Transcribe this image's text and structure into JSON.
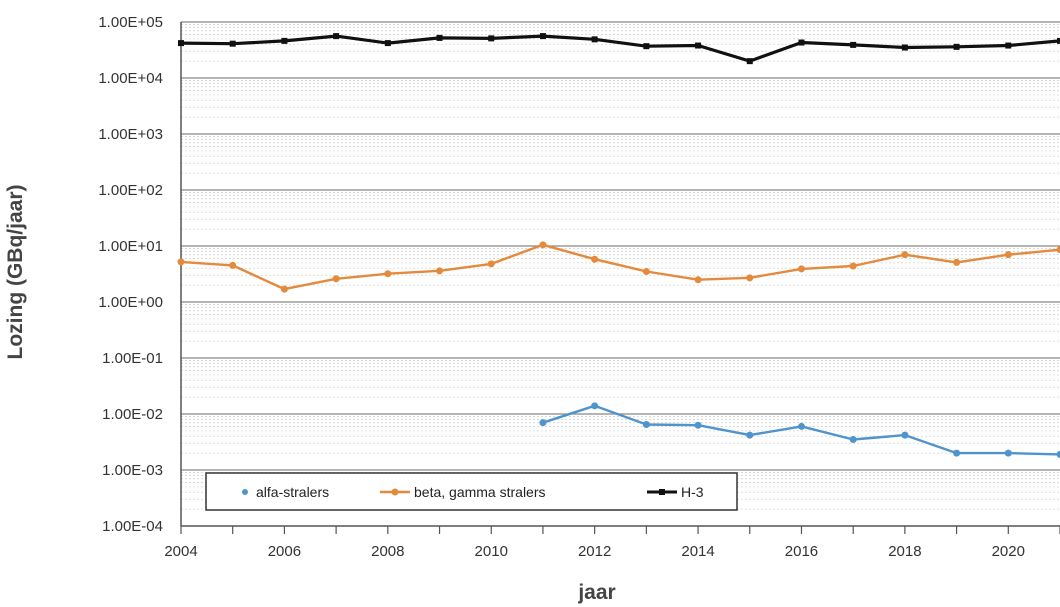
{
  "chart_data": {
    "type": "line",
    "title": "",
    "xlabel": "jaar",
    "ylabel": "Lozing (GBq/jaar)",
    "y_scale": "log",
    "ylim": [
      0.0001,
      100000
    ],
    "xlim": [
      2004,
      2021
    ],
    "x_ticks": [
      "2004",
      "2006",
      "2008",
      "2010",
      "2012",
      "2014",
      "2016",
      "2018",
      "2020"
    ],
    "y_ticks": [
      "1.00E-04",
      "1.00E-03",
      "1.00E-02",
      "1.00E-01",
      "1.00E+00",
      "1.00E+01",
      "1.00E+02",
      "1.00E+03",
      "1.00E+04",
      "1.00E+05"
    ],
    "y_tick_values": [
      0.0001,
      0.001,
      0.01,
      0.1,
      1,
      10,
      100,
      1000,
      10000,
      100000
    ],
    "grid": true,
    "legend_position": "bottom-left",
    "series": [
      {
        "name": "alfa-stralers",
        "color": "#4f94cd",
        "marker": "circle",
        "x": [
          2011,
          2012,
          2013,
          2014,
          2015,
          2016,
          2017,
          2018,
          2019,
          2020,
          2021
        ],
        "values": [
          0.007,
          0.014,
          0.0065,
          0.0063,
          0.0042,
          0.006,
          0.0035,
          0.0042,
          0.002,
          0.002,
          0.0019
        ]
      },
      {
        "name": "beta, gamma stralers",
        "color": "#e48a3c",
        "marker": "circle",
        "x": [
          2004,
          2005,
          2006,
          2007,
          2008,
          2009,
          2010,
          2011,
          2012,
          2013,
          2014,
          2015,
          2016,
          2017,
          2018,
          2019,
          2020,
          2021
        ],
        "values": [
          5.2,
          4.5,
          1.7,
          2.6,
          3.2,
          3.6,
          4.8,
          10.5,
          5.8,
          3.5,
          2.5,
          2.7,
          3.9,
          4.4,
          7.0,
          5.1,
          7.0,
          8.6
        ]
      },
      {
        "name": "H-3",
        "color": "#111111",
        "marker": "square",
        "x": [
          2004,
          2005,
          2006,
          2007,
          2008,
          2009,
          2010,
          2011,
          2012,
          2013,
          2014,
          2015,
          2016,
          2017,
          2018,
          2019,
          2020,
          2021
        ],
        "values": [
          42000,
          41000,
          46000,
          56000,
          42000,
          52000,
          51000,
          56000,
          49000,
          37000,
          38000,
          20000,
          43000,
          39000,
          35000,
          36000,
          38000,
          46000
        ]
      }
    ]
  }
}
